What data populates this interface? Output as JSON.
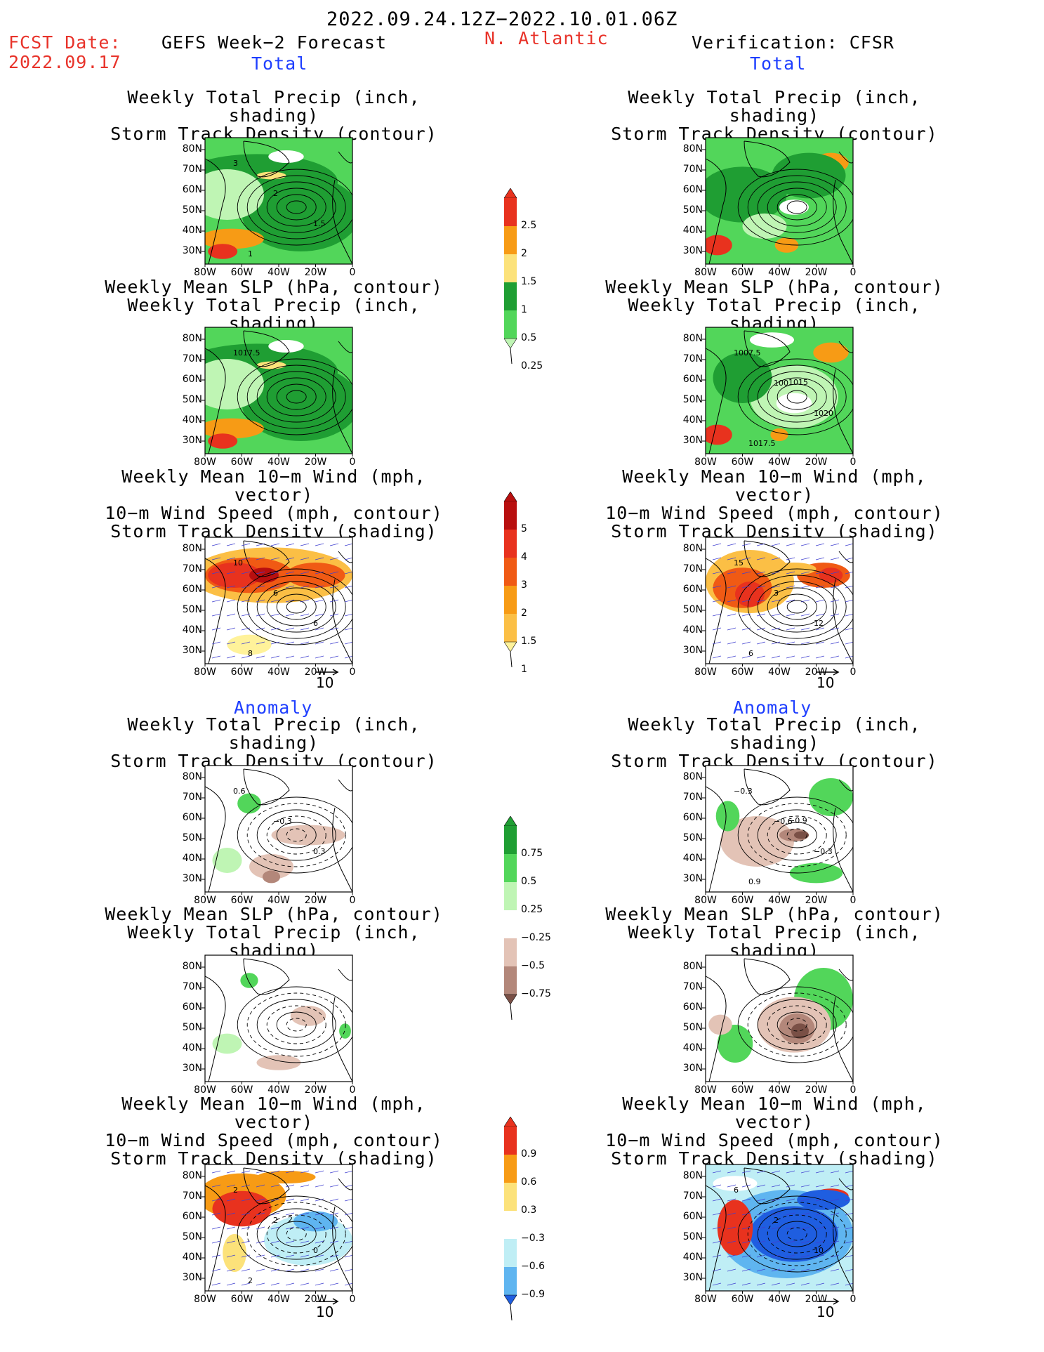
{
  "header": {
    "period": "2022.09.24.12Z−2022.10.01.06Z",
    "fcst_label": "FCST Date:",
    "fcst_date": "2022.09.17",
    "forecast_title": "GEFS Week−2 Forecast",
    "region": "N. Atlantic",
    "verification": "Verification: CFSR"
  },
  "sections": {
    "total": "Total",
    "anomaly": "Anomaly"
  },
  "titles": {
    "precip_track": [
      "Weekly Total Precip (inch, shading)",
      "Storm Track Density (contour)"
    ],
    "slp_precip": [
      "Weekly Mean SLP (hPa, contour)",
      "Weekly Total Precip (inch, shading)"
    ],
    "wind_track": [
      "Weekly Mean 10−m Wind (mph, vector)",
      "10−m Wind Speed (mph, contour)",
      "Storm Track Density (shading)"
    ]
  },
  "axes": {
    "lat_ticks": [
      "80N",
      "70N",
      "60N",
      "50N",
      "40N",
      "30N"
    ],
    "lon_ticks": [
      "80W",
      "60W",
      "40W",
      "20W",
      "0"
    ]
  },
  "vector_scale": "10",
  "colorbars": {
    "precip_total": {
      "labels": [
        "2.5",
        "2",
        "1.5",
        "1",
        "0.5",
        "0.25"
      ],
      "colors": [
        "#e8321e",
        "#f79b15",
        "#fce27a",
        "#1f9e33",
        "#52d65a",
        "#bff5b4"
      ]
    },
    "track_total": {
      "labels": [
        "5",
        "4",
        "3",
        "2",
        "1.5",
        "1"
      ],
      "colors": [
        "#b80f0f",
        "#e8321e",
        "#f05a14",
        "#f79b15",
        "#fbbf45",
        "#fff29a"
      ]
    },
    "precip_anom": {
      "labels": [
        "0.75",
        "0.5",
        "0.25",
        "−0.25",
        "−0.5",
        "−0.75"
      ],
      "colors": [
        "#1f9e33",
        "#52d65a",
        "#bff5b4",
        "#ffffff",
        "#e3c3b6",
        "#b3877a",
        "#7a5046"
      ]
    },
    "track_anom": {
      "labels": [
        "0.9",
        "0.6",
        "0.3",
        "−0.3",
        "−0.6",
        "−0.9"
      ],
      "colors": [
        "#e8321e",
        "#f79b15",
        "#fce27a",
        "#ffffff",
        "#bfeef5",
        "#5fb5f0",
        "#1f5ee0"
      ]
    }
  },
  "panel_labels": {
    "fc_precip_track": [
      "3",
      "2",
      "1.5",
      "1"
    ],
    "fc_slp": [
      "1017.5"
    ],
    "fc_wind": [
      "10",
      "6",
      "6",
      "8"
    ],
    "ver_slp": [
      "1007.5",
      "100",
      "1020",
      "1017.5",
      "1015"
    ],
    "ver_wind": [
      "15",
      "3",
      "12",
      "6"
    ],
    "fc_anom_precip": [
      "0.6",
      "−0.3",
      "0.3"
    ],
    "ver_anom_precip": [
      "−0.3",
      "−0.6",
      "−0.3",
      "0.9",
      "−0.9"
    ],
    "fc_anom_wind": [
      "2",
      "2",
      "0",
      "2",
      "2"
    ],
    "ver_anom_wind": [
      "6",
      "2",
      "10"
    ]
  }
}
